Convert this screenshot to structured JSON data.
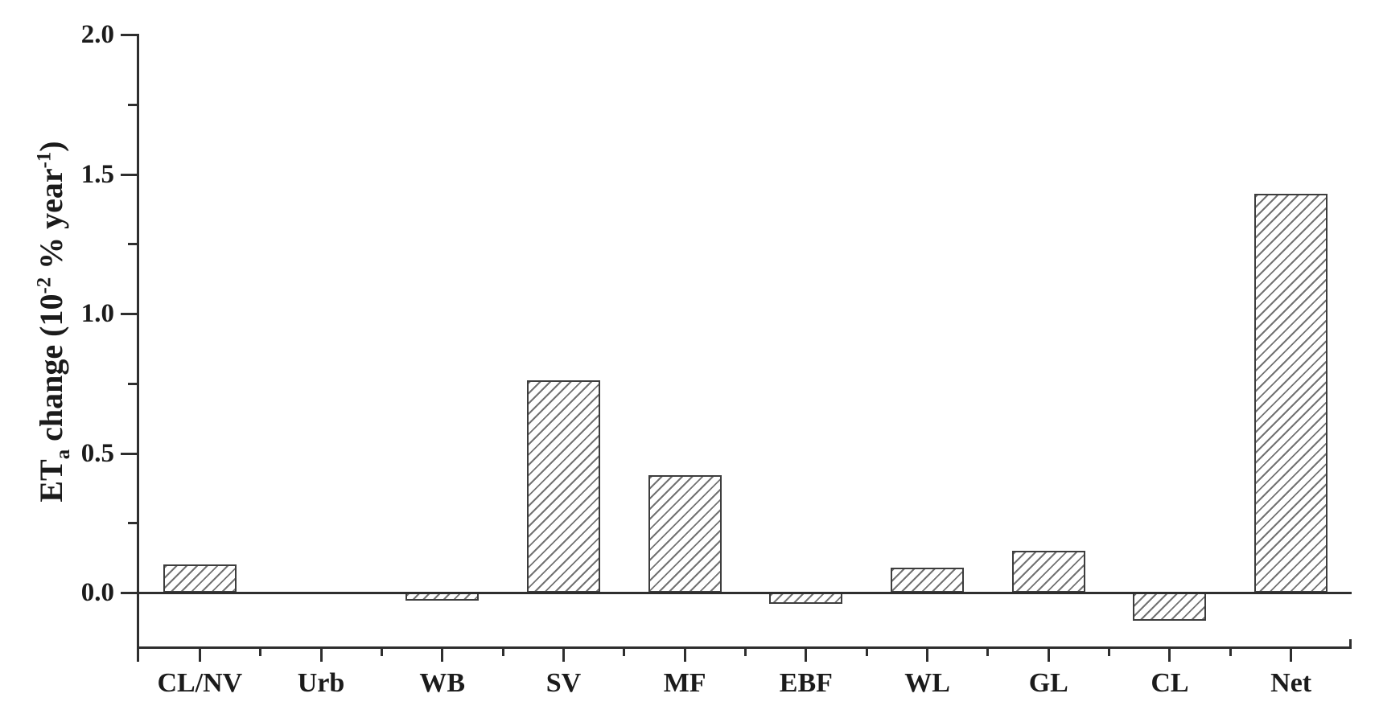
{
  "figure": {
    "background_color": "#ffffff",
    "axis_color": "#2e2e2e",
    "text_color": "#1b1b1b",
    "bar_fill_color": "#ffffff",
    "bar_border_color": "#3d3d3d",
    "bar_hatch_color": "#5a5a5a",
    "bar_hatch_style": "forward-diagonal"
  },
  "y_axis_title": {
    "pre": "ET",
    "sub": "a",
    "mid1": " change (10",
    "sup1": "-2",
    "mid2": " % year",
    "sup2": "-1",
    "end": ")"
  },
  "chart_data": {
    "type": "bar",
    "title": "",
    "xlabel": "",
    "ylabel": "ET_a change (10^-2 % year^-1)",
    "categories": [
      "CL/NV",
      "Urb",
      "WB",
      "SV",
      "MF",
      "EBF",
      "WL",
      "GL",
      "CL",
      "Net"
    ],
    "values": [
      0.1,
      0.0,
      -0.03,
      0.76,
      0.42,
      -0.04,
      0.09,
      0.15,
      -0.1,
      1.43
    ],
    "ylim": [
      -0.2,
      2.0
    ],
    "y_major_ticks": [
      0.0,
      0.5,
      1.0,
      1.5,
      2.0
    ],
    "y_tick_labels": [
      "0.0",
      "0.5",
      "1.0",
      "1.5",
      "2.0"
    ],
    "y_minor_ticks": [
      0.25,
      0.75,
      1.25,
      1.75
    ],
    "grid": false,
    "legend": "none",
    "baseline": 0.0
  }
}
